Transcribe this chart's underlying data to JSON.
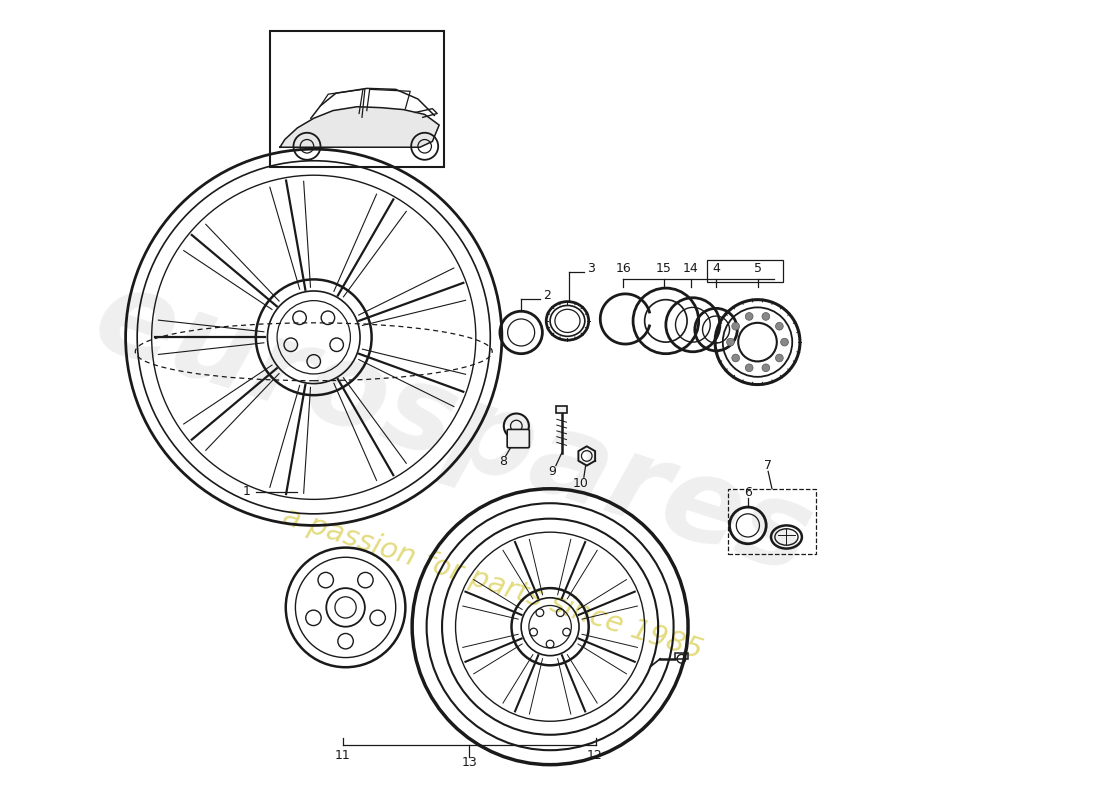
{
  "bg_color": "#ffffff",
  "line_color": "#1a1a1a",
  "wm1": "eurospares",
  "wm2": "a passion for parts since 1985",
  "parts": [
    "1",
    "2",
    "3",
    "4",
    "5",
    "6",
    "7",
    "8",
    "9",
    "10",
    "11",
    "12",
    "13",
    "14",
    "15",
    "16"
  ]
}
